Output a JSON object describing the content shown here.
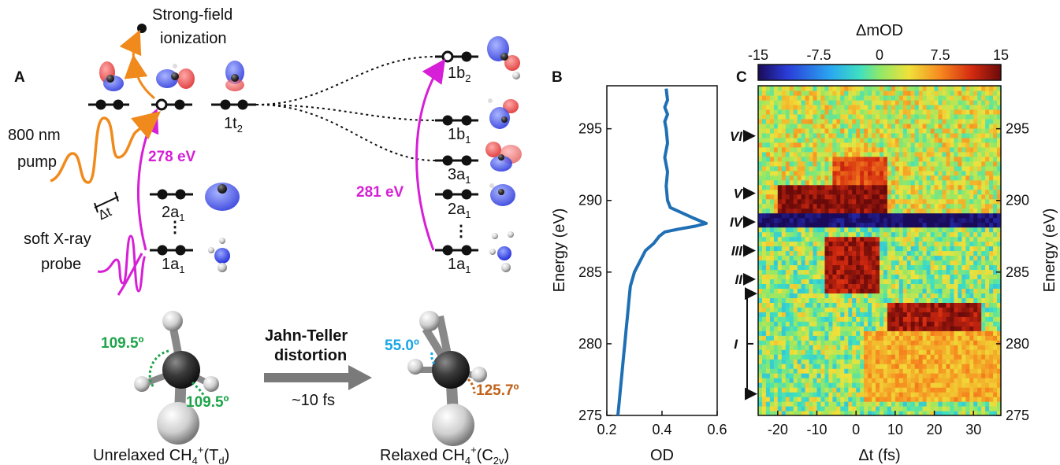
{
  "figure": {
    "panels": {
      "A": "A",
      "B": "B",
      "C": "C"
    },
    "panel_a": {
      "strong_field_line1": "Strong-field",
      "strong_field_line2": "ionization",
      "pump_line1": "800 nm",
      "pump_line2": "pump",
      "probe_line1": "soft X-ray",
      "probe_line2": "probe",
      "delay_label": "Δt",
      "energy_left": "278 eV",
      "energy_right": "281 eV",
      "orbitals_left": {
        "t2": "1t",
        "t2_sub": "2",
        "a1_2": "2a",
        "a1_2_sub": "1",
        "a1_1": "1a",
        "a1_1_sub": "1"
      },
      "orbitals_right": {
        "b2": "1b",
        "b2_sub": "2",
        "b1": "1b",
        "b1_sub": "1",
        "a1_3": "3a",
        "a1_3_sub": "1",
        "a1_2": "2a",
        "a1_2_sub": "1",
        "a1_1": "1a",
        "a1_1_sub": "1"
      },
      "angle_1": "109.5º",
      "angle_2": "109.5º",
      "angle_3": "55.0º",
      "angle_4": "125.7º",
      "jt_line1": "Jahn-Teller",
      "jt_line2": "distortion",
      "jt_time": "~10 fs",
      "unrelaxed_prefix": "Unrelaxed CH",
      "unrelaxed_sub": "4",
      "unrelaxed_sup": "+",
      "unrelaxed_sym": "(T",
      "unrelaxed_sym_sub": "d",
      "unrelaxed_close": ")",
      "relaxed_prefix": "Relaxed CH",
      "relaxed_sub": "4",
      "relaxed_sup": "+",
      "relaxed_sym": "(C",
      "relaxed_sym_sub": "2v",
      "relaxed_close": ")"
    },
    "colors": {
      "magenta": "#d61fd6",
      "orange": "#f08a1c",
      "green": "#1ea44a",
      "cyan": "#1aa6e6",
      "brown": "#c0621a",
      "curve": "#1f6fb5"
    }
  },
  "chart_data": [
    {
      "type": "line",
      "panel": "B",
      "xlabel": "OD",
      "ylabel": "Energy (eV)",
      "xlim": [
        0.2,
        0.6
      ],
      "ylim": [
        275,
        298
      ],
      "xticks": [
        "0.2",
        "0.4",
        "0.6"
      ],
      "yticks": [
        "275",
        "280",
        "285",
        "290",
        "295"
      ],
      "series": [
        {
          "x": [
            0.24,
            0.245,
            0.25,
            0.255,
            0.26,
            0.265,
            0.27,
            0.275,
            0.28,
            0.285,
            0.3,
            0.34,
            0.37,
            0.39,
            0.41,
            0.46,
            0.52,
            0.56,
            0.51,
            0.43,
            0.42,
            0.415,
            0.42,
            0.41,
            0.42,
            0.415,
            0.41,
            0.42,
            0.41,
            0.42,
            0.415
          ],
          "y": [
            275,
            276,
            277,
            278,
            279,
            280,
            281,
            282,
            283,
            284,
            285,
            286.5,
            287,
            287.5,
            287.8,
            288.0,
            288.2,
            288.4,
            288.8,
            289.5,
            290.0,
            291.0,
            292.0,
            293.0,
            294.0,
            295.0,
            295.5,
            296.0,
            296.5,
            297.0,
            297.8
          ]
        }
      ]
    },
    {
      "type": "heatmap",
      "panel": "C",
      "title": "ΔmOD",
      "xlabel": "Δt (fs)",
      "ylabel": "Energy (eV)",
      "xlim": [
        -25,
        37
      ],
      "ylim": [
        275,
        298
      ],
      "xticks": [
        "-20",
        "-10",
        "0",
        "10",
        "20",
        "30"
      ],
      "yticks": [
        "275",
        "280",
        "285",
        "290",
        "295"
      ],
      "colorbar": {
        "min": -15,
        "max": 15,
        "ticks": [
          "-15",
          "-7.5",
          "0",
          "7.5",
          "15"
        ]
      },
      "features": [
        {
          "label": "VI",
          "energy": 294.5
        },
        {
          "label": "V",
          "energy": 290.5
        },
        {
          "label": "IV",
          "energy": 288.5
        },
        {
          "label": "III",
          "energy": 286.5
        },
        {
          "label": "II",
          "energy": 284.5
        },
        {
          "label": "I",
          "energy": 280.0
        }
      ],
      "regions": [
        {
          "t": [
            -25,
            37
          ],
          "e": [
            288.0,
            289.0
          ],
          "value": -15
        },
        {
          "t": [
            -20,
            8
          ],
          "e": [
            289.0,
            291.2
          ],
          "value": 14
        },
        {
          "t": [
            -6,
            8
          ],
          "e": [
            291.2,
            293.0
          ],
          "value": 10
        },
        {
          "t": [
            -8,
            6
          ],
          "e": [
            283.5,
            287.5
          ],
          "value": 13
        },
        {
          "t": [
            8,
            32
          ],
          "e": [
            281.0,
            283.0
          ],
          "value": 13
        },
        {
          "t": [
            2,
            37
          ],
          "e": [
            276,
            281
          ],
          "value": 6
        }
      ]
    }
  ]
}
